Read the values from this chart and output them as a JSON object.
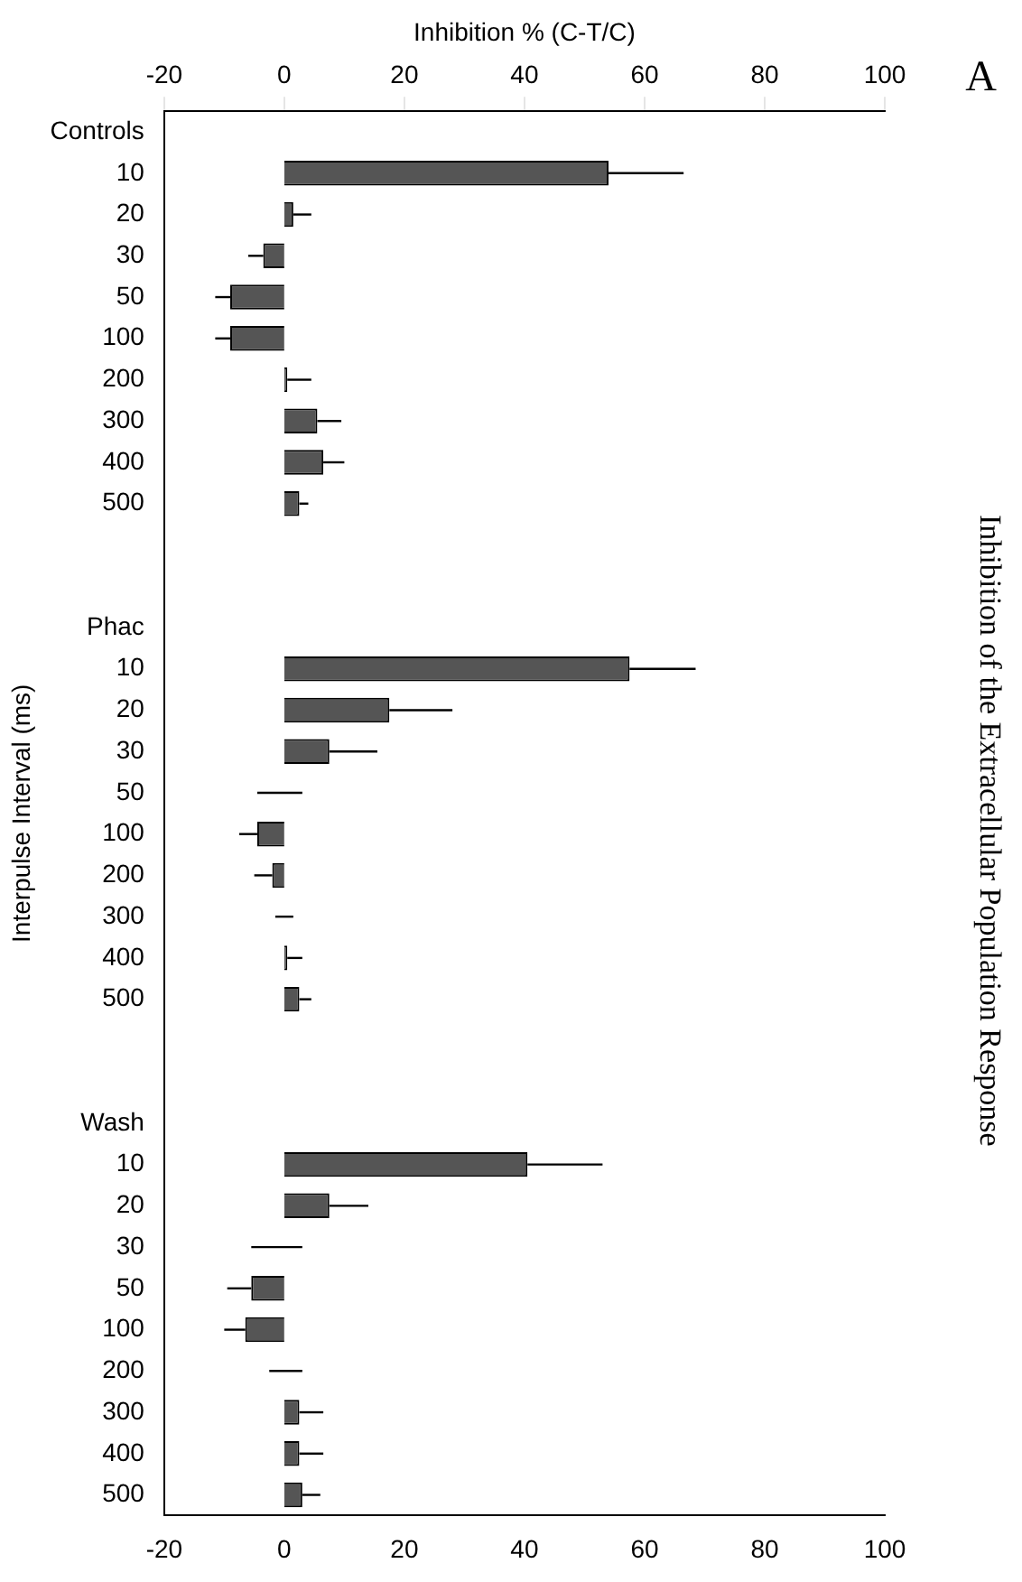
{
  "chart_data": {
    "type": "bar",
    "orientation": "horizontal",
    "title": "Inhibition of the Extracellular Population Response",
    "x2label": "Inhibition % (C-T/C)",
    "ylabel": "Interpulse Interval (ms)",
    "annotations": [
      "A"
    ],
    "categories": [
      "Controls",
      "10",
      "20",
      "30",
      "50",
      "100",
      "200",
      "300",
      "400",
      "500",
      null,
      null,
      "Phac",
      "10",
      "20",
      "30",
      "50",
      "100",
      "200",
      "300",
      "400",
      "500",
      null,
      null,
      "Wash",
      "10",
      "20",
      "30",
      "50",
      "100",
      "200",
      "300",
      "400",
      "500"
    ],
    "series": [
      {
        "color": "#555555",
        "values": [
          null,
          54,
          1.5,
          -3.5,
          -9,
          -9,
          0.5,
          5.5,
          6.5,
          2.5,
          null,
          null,
          null,
          57.5,
          17.5,
          7.5,
          0,
          -4.5,
          -2,
          0,
          0.5,
          2.5,
          null,
          null,
          null,
          40.5,
          7.5,
          0,
          -5.5,
          -6.5,
          0,
          2.5,
          2.5,
          3
        ],
        "errors": [
          null,
          [
            54,
            66.5
          ],
          [
            1.5,
            4.5
          ],
          [
            -6,
            -3.5
          ],
          [
            -11.5,
            -9
          ],
          [
            -11.5,
            -9
          ],
          [
            0.5,
            4.5
          ],
          [
            5.5,
            9.5
          ],
          [
            6.5,
            10
          ],
          [
            2.5,
            4
          ],
          null,
          null,
          null,
          [
            57.5,
            68.5
          ],
          [
            17.5,
            28
          ],
          [
            7.5,
            15.5
          ],
          [
            -4.5,
            3
          ],
          [
            -7.5,
            -4.5
          ],
          [
            -5,
            -2
          ],
          [
            -1.5,
            1.5
          ],
          [
            0.5,
            3
          ],
          [
            2.5,
            4.5
          ],
          null,
          null,
          null,
          [
            40.5,
            53
          ],
          [
            7.5,
            14
          ],
          [
            -5.5,
            3
          ],
          [
            -9.5,
            -5.5
          ],
          [
            -10,
            -6.5
          ],
          [
            -2.5,
            3
          ],
          [
            2.5,
            6.5
          ],
          [
            2.5,
            6.5
          ],
          [
            3,
            6
          ]
        ]
      }
    ],
    "xlim": [
      -20,
      100
    ],
    "xticks": [
      -20,
      0,
      20,
      40,
      60,
      80,
      100
    ],
    "x2lim": [
      -20,
      100
    ],
    "x2ticks": [
      -20,
      0,
      20,
      40,
      60,
      80,
      100
    ],
    "grid": false
  }
}
